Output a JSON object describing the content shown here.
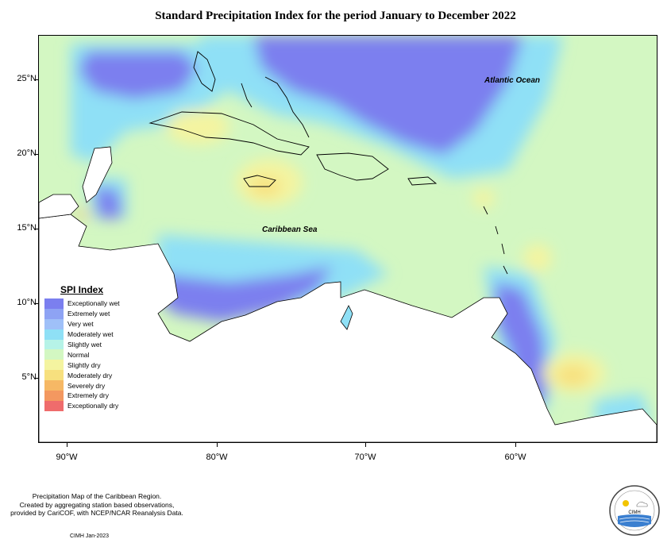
{
  "title": "Standard Precipitation Index for the period January to December 2022",
  "axes": {
    "lat_ticks": [
      "25°N",
      "20°N",
      "15°N",
      "10°N",
      "5°N"
    ],
    "lon_ticks": [
      "90°W",
      "80°W",
      "70°W",
      "60°W"
    ]
  },
  "map_labels": {
    "ocean": "Atlantic Ocean",
    "sea": "Caribbean Sea"
  },
  "legend": {
    "title": "SPI Index",
    "items": [
      {
        "label": "Exceptionally wet",
        "color": "#7b7fef"
      },
      {
        "label": "Extremely wet",
        "color": "#8ea3f4"
      },
      {
        "label": "Very wet",
        "color": "#9fc0f8"
      },
      {
        "label": "Moderately wet",
        "color": "#8fe0f6"
      },
      {
        "label": "Slightly wet",
        "color": "#b6f3e7"
      },
      {
        "label": "Normal",
        "color": "#d3f7c2"
      },
      {
        "label": "Slightly dry",
        "color": "#f4f4a0"
      },
      {
        "label": "Moderately dry",
        "color": "#f7e07e"
      },
      {
        "label": "Severely dry",
        "color": "#f6b865"
      },
      {
        "label": "Extremely dry",
        "color": "#f39860"
      },
      {
        "label": "Exceptionally dry",
        "color": "#ef6c6c"
      }
    ]
  },
  "footnote": {
    "line1": "Precipitation Map of the Caribbean Region.",
    "line2": "Created by aggregating station based observations,",
    "line3": "provided by CariCOF, with NCEP/NCAR Reanalysis Data."
  },
  "credit": "CIMH Jan-2023",
  "logo": {
    "text": "CIMH"
  }
}
